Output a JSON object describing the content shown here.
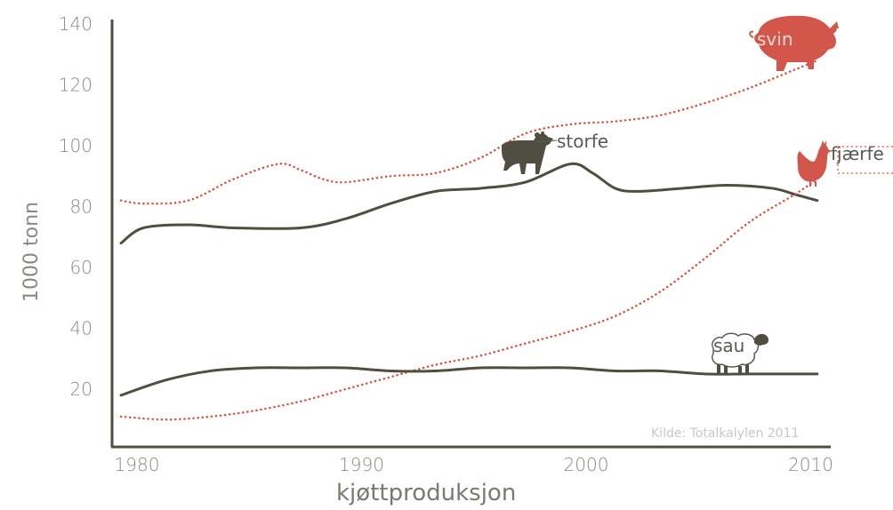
{
  "chart_data": {
    "type": "line",
    "title": "",
    "xlabel": "kjøttproduksjon",
    "ylabel": "1000 tonn",
    "source": "Kilde: Totalkalylen 2011",
    "xlim": [
      1980,
      2012
    ],
    "ylim": [
      0,
      140
    ],
    "xticks": [
      1980,
      1990,
      2000,
      2010
    ],
    "yticks": [
      20,
      40,
      60,
      80,
      100,
      120,
      140
    ],
    "grid": false,
    "colors": {
      "axis": "#4f4e40",
      "dark": "#4f4e40",
      "red": "#d9503c",
      "icon_red": "#d2574a"
    },
    "series": [
      {
        "name": "svin",
        "style": "dotted",
        "color": "#d9503c",
        "x": [
          1980,
          1981,
          1983,
          1985,
          1987,
          1988,
          1989,
          1990,
          1992,
          1994,
          1996,
          1998,
          2000,
          2002,
          2004,
          2006,
          2008,
          2010,
          2011
        ],
        "y": [
          82,
          81,
          82,
          89,
          94,
          92,
          89,
          88,
          90,
          91,
          96,
          104,
          107,
          108,
          110,
          114,
          119,
          125,
          128
        ]
      },
      {
        "name": "storfe",
        "style": "solid",
        "color": "#4f4e40",
        "x": [
          1980,
          1981,
          1983,
          1985,
          1988,
          1990,
          1992,
          1994,
          1996,
          1998,
          2000,
          2001,
          2002,
          2003,
          2005,
          2007,
          2009,
          2010,
          2011
        ],
        "y": [
          68,
          73,
          74,
          73,
          73,
          76,
          81,
          85,
          86,
          88,
          94,
          91,
          86,
          85,
          86,
          87,
          86,
          84,
          82
        ]
      },
      {
        "name": "fjærfe",
        "style": "dotted",
        "color": "#d9503c",
        "x": [
          1980,
          1982,
          1984,
          1986,
          1988,
          1990,
          1992,
          1994,
          1996,
          1998,
          2000,
          2002,
          2004,
          2006,
          2008,
          2010,
          2011
        ],
        "y": [
          11,
          10,
          11,
          13,
          16,
          20,
          24,
          28,
          31,
          35,
          39,
          44,
          52,
          63,
          75,
          84,
          89
        ]
      },
      {
        "name": "sau",
        "style": "solid",
        "color": "#4f4e40",
        "x": [
          1980,
          1982,
          1984,
          1986,
          1988,
          1990,
          1992,
          1994,
          1996,
          1998,
          2000,
          2002,
          2004,
          2006,
          2008,
          2010,
          2011
        ],
        "y": [
          18,
          23,
          26,
          27,
          27,
          27,
          26,
          26,
          27,
          27,
          27,
          26,
          26,
          25,
          25,
          25,
          25
        ]
      }
    ],
    "labels": {
      "svin": "svin",
      "storfe": "storfe",
      "fjaerfe": "fjærfe",
      "sau": "sau"
    }
  }
}
